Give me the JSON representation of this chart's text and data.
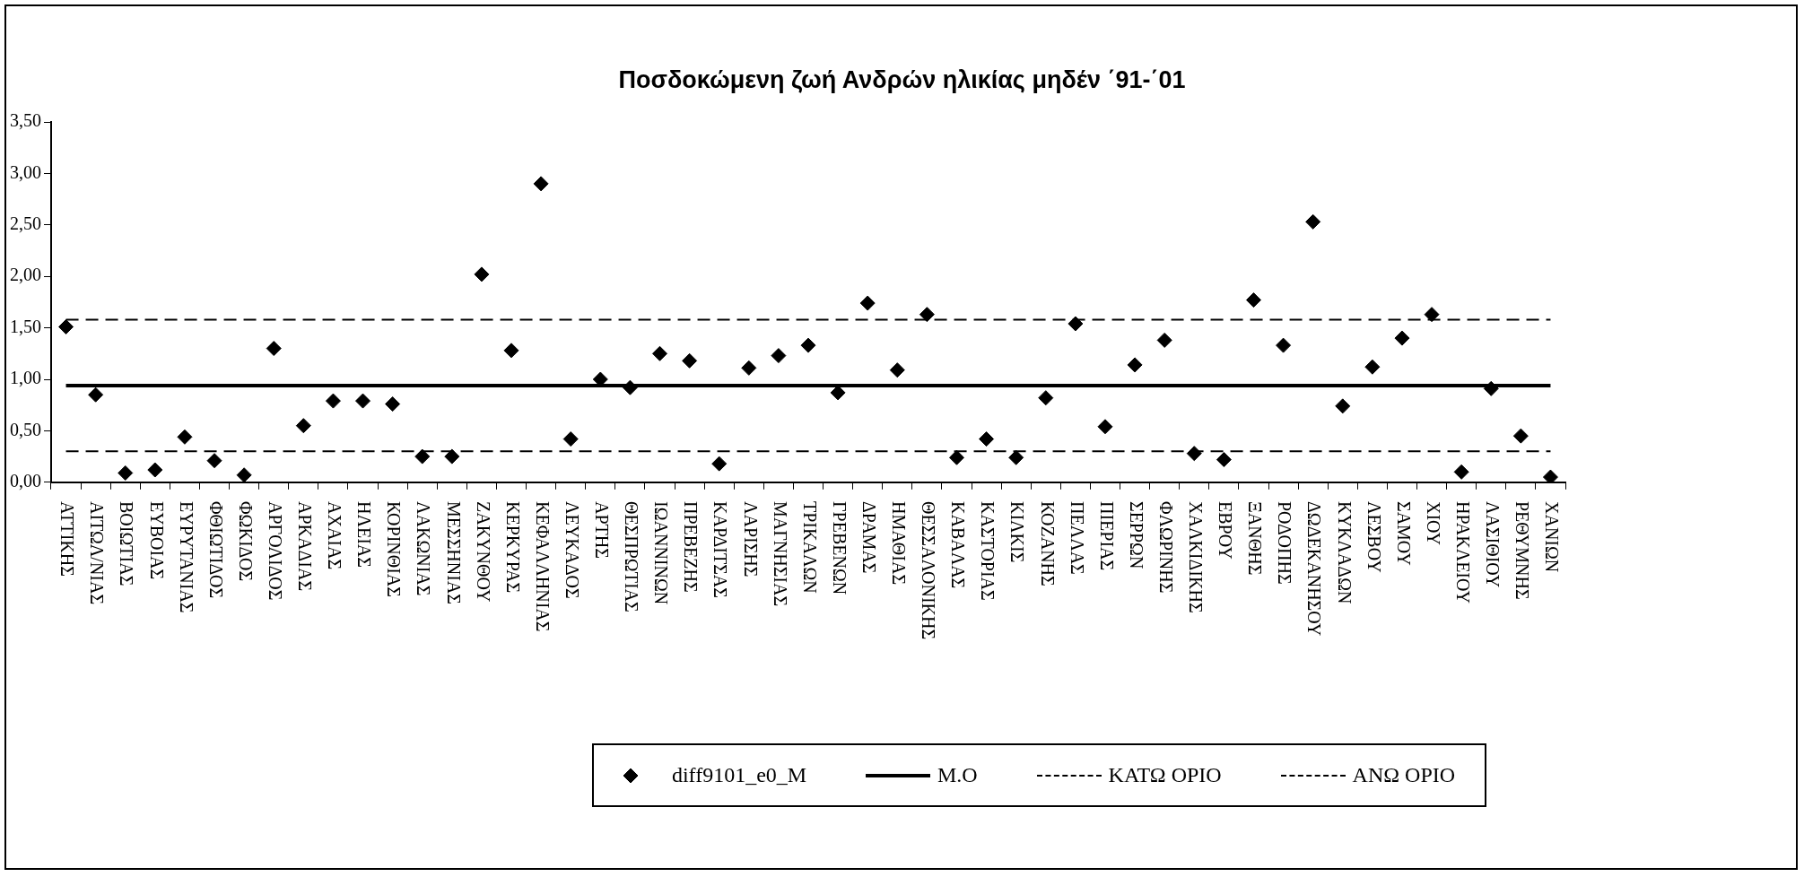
{
  "chart_data": {
    "type": "scatter",
    "title": "Ποσδοκώμενη ζωή Ανδρών ηλικίας μηδέν ΄91-΄01",
    "categories": [
      "ΑΤΤΙΚΗΣ",
      "ΑΙΤΩΛ/ΝΙΑΣ",
      "ΒΟΙΩΤΙΑΣ",
      "ΕΥΒΟΙΑΣ",
      "ΕΥΡΥΤΑΝΙΑΣ",
      "ΦΘΙΩΤΙΔΟΣ",
      "ΦΩΚΙΔΟΣ",
      "ΑΡΓΟΛΙΔΟΣ",
      "ΑΡΚΑΔΙΑΣ",
      "ΑΧΑΙΑΣ",
      "ΗΛΕΙΑΣ",
      "ΚΟΡΙΝΘΙΑΣ",
      "ΛΑΚΩΝΙΑΣ",
      "ΜΕΣΣΗΝΙΑΣ",
      "ΖΑΚΥΝΘΟΥ",
      "ΚΕΡΚΥΡΑΣ",
      "ΚΕΦΑΛΛΗΝΙΑΣ",
      "ΛΕΥΚΑΔΟΣ",
      "ΑΡΤΗΣ",
      "ΘΕΣΠΡΩΤΙΑΣ",
      "ΙΩΑΝΝΙΝΩΝ",
      "ΠΡΕΒΕΖΗΣ",
      "ΚΑΡΔΙΤΣΑΣ",
      "ΛΑΡΙΣΗΣ",
      "ΜΑΓΝΗΣΙΑΣ",
      "ΤΡΙΚΑΛΩΝ",
      "ΓΡΕΒΕΝΩΝ",
      "ΔΡΑΜΑΣ",
      "ΗΜΑΘΙΑΣ",
      "ΘΕΣΣΑΛΟΝΙΚΗΣ",
      "ΚΑΒΑΛΑΣ",
      "ΚΑΣΤΟΡΙΑΣ",
      "ΚΙΛΚΙΣ",
      "ΚΟΖΑΝΗΣ",
      "ΠΕΛΛΑΣ",
      "ΠΙΕΡΙΑΣ",
      "ΣΕΡΡΩΝ",
      "ΦΛΩΡΙΝΗΣ",
      "ΧΑΛΚΙΔΙΚΗΣ",
      "ΕΒΡΟΥ",
      "ΞΑΝΘΗΣ",
      "ΡΟΔΟΠΗΣ",
      "ΔΩΔΕΚΑΝΗΣΟΥ",
      "ΚΥΚΛΑΔΩΝ",
      "ΛΕΣΒΟΥ",
      "ΣΑΜΟΥ",
      "ΧΙΟΥ",
      "ΗΡΑΚΛΕΙΟΥ",
      "ΛΑΣΙΘΙΟΥ",
      "ΡΕΘΥΜΝΗΣ",
      "ΧΑΝΙΩΝ"
    ],
    "series": [
      {
        "name": "diff9101_e0_M",
        "color": "#000000",
        "values": [
          1.51,
          0.85,
          0.09,
          0.12,
          0.44,
          0.21,
          0.07,
          1.3,
          0.55,
          0.79,
          0.79,
          0.76,
          0.25,
          0.25,
          2.02,
          1.28,
          2.9,
          0.42,
          1.0,
          0.92,
          1.25,
          1.18,
          0.18,
          1.11,
          1.23,
          1.33,
          0.87,
          1.74,
          1.09,
          1.63,
          0.24,
          0.42,
          0.24,
          0.82,
          1.54,
          0.54,
          1.14,
          1.38,
          0.28,
          0.22,
          1.77,
          1.33,
          2.53,
          0.74,
          1.12,
          1.4,
          1.63,
          0.1,
          0.91,
          0.45,
          0.05
        ]
      }
    ],
    "ref_lines": [
      {
        "axis": "y",
        "value": 0.94,
        "label": "M.O",
        "color": "#000000",
        "line_style": "solid"
      },
      {
        "axis": "y",
        "value": 0.3,
        "label": "ΚΑΤΩ ΟΡΙΟ",
        "color": "#000000",
        "line_style": "dashed"
      },
      {
        "axis": "y",
        "value": 1.58,
        "label": "ΑΝΩ ΟΡΙΟ",
        "color": "#000000",
        "line_style": "dashed"
      }
    ],
    "ylim": [
      0,
      3.5
    ],
    "yticks": [
      {
        "value": 0,
        "label": "0,00"
      },
      {
        "value": 0.5,
        "label": "0,50"
      },
      {
        "value": 1,
        "label": "1,00"
      },
      {
        "value": 1.5,
        "label": "1,50"
      },
      {
        "value": 2,
        "label": "2,00"
      },
      {
        "value": 2.5,
        "label": "2,50"
      },
      {
        "value": 3,
        "label": "3,00"
      },
      {
        "value": 3.5,
        "label": "3,50"
      }
    ],
    "marker": "diamond",
    "grid": false,
    "legend": "bottom"
  }
}
